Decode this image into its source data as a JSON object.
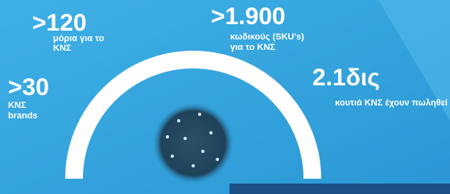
{
  "stats": [
    {
      "value": ">120",
      "label": [
        "μόρια για το",
        "ΚΝΣ"
      ]
    },
    {
      "value": ">1.900",
      "label": [
        "κωδικούς (SKU's)",
        "για το ΚΝΣ"
      ]
    },
    {
      "value": ">30",
      "label": [
        "ΚΝΣ",
        "brands"
      ]
    },
    {
      "value": "2.1δις",
      "label": [
        "κουτιά ΚΝΣ έχουν πωληθεί"
      ]
    }
  ]
}
